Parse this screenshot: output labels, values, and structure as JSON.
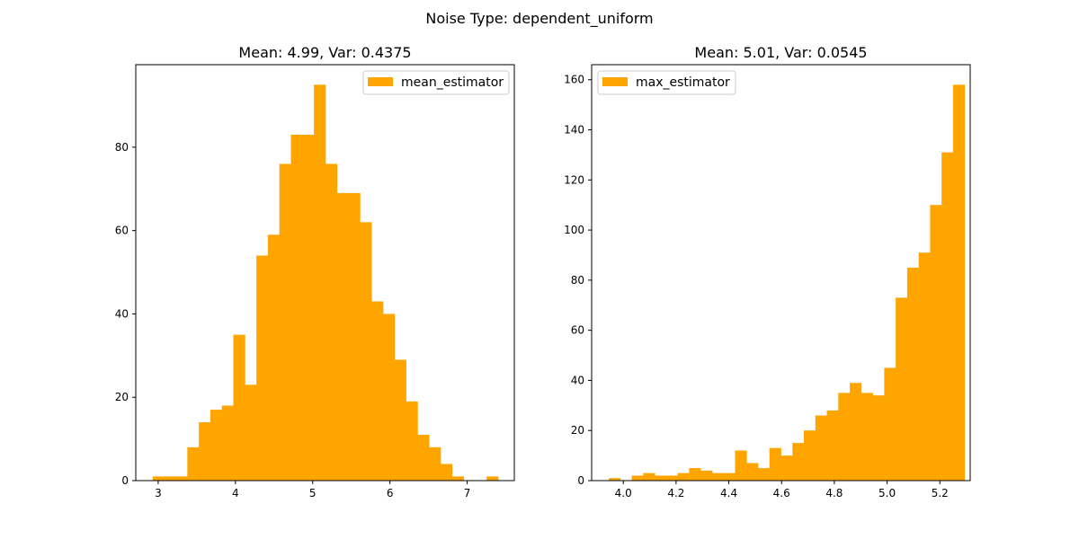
{
  "figure": {
    "suptitle": "Noise Type: dependent_uniform"
  },
  "chart_data": [
    {
      "type": "bar",
      "title": "Mean: 4.99, Var: 0.4375",
      "legend": "mean_estimator",
      "legend_position": "top-right",
      "color": "#ffa500",
      "bin_start": 2.93,
      "bin_width": 0.149,
      "values": [
        1,
        1,
        1,
        8,
        14,
        17,
        18,
        35,
        23,
        54,
        59,
        76,
        83,
        83,
        95,
        76,
        69,
        69,
        62,
        43,
        40,
        29,
        19,
        11,
        8,
        4,
        1,
        0,
        0,
        1
      ],
      "xlim": [
        2.71,
        7.61
      ],
      "ylim": [
        0,
        99.8
      ],
      "xticks": [
        3,
        4,
        5,
        6,
        7
      ],
      "yticks": [
        0,
        20,
        40,
        60,
        80
      ],
      "grid": false
    },
    {
      "type": "bar",
      "title": "Mean: 5.01, Var: 0.0545",
      "legend": "max_estimator",
      "legend_position": "top-left",
      "color": "#ffa500",
      "bin_start": 3.945,
      "bin_width": 0.0435,
      "values": [
        1,
        0,
        2,
        3,
        2,
        2,
        3,
        5,
        4,
        3,
        3,
        12,
        7,
        5,
        13,
        10,
        15,
        20,
        26,
        28,
        35,
        39,
        35,
        34,
        45,
        73,
        85,
        91,
        110,
        131,
        158
      ],
      "xlim": [
        3.88,
        5.315
      ],
      "ylim": [
        0,
        166
      ],
      "xticks": [
        4.0,
        4.2,
        4.4,
        4.6,
        4.8,
        5.0,
        5.2
      ],
      "yticks": [
        0,
        20,
        40,
        60,
        80,
        100,
        120,
        140,
        160
      ],
      "grid": false
    }
  ]
}
